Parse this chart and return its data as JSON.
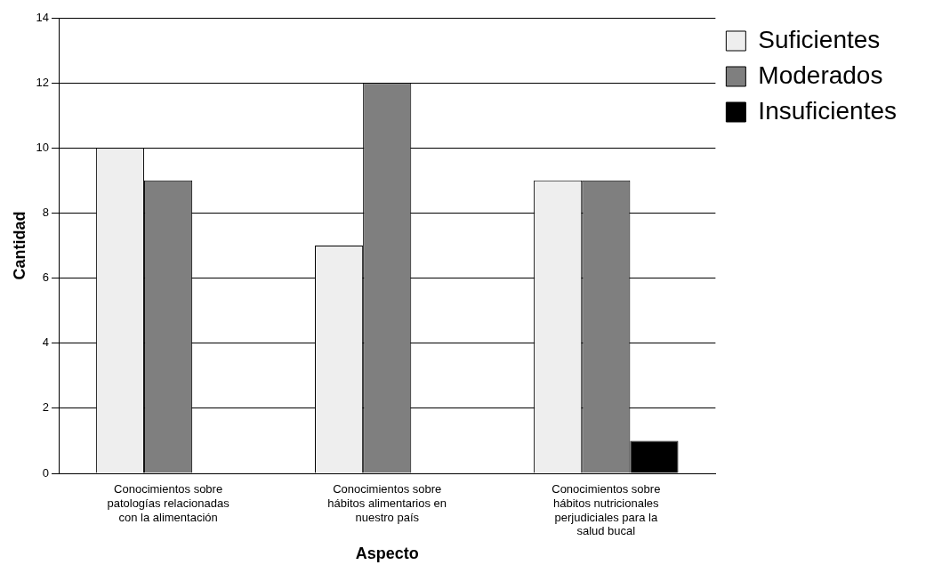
{
  "chart_data": {
    "type": "bar",
    "xlabel": "Aspecto",
    "ylabel": "Cantidad",
    "categories": [
      "Conocimientos sobre patologías relacionadas con la alimentación",
      "Conocimientos sobre hábitos alimentarios en nuestro país",
      "Conocimientos sobre hábitos nutricionales perjudiciales para la salud bucal"
    ],
    "series": [
      {
        "name": "Suficientes",
        "color": "#eeeeee",
        "values": [
          10,
          7,
          9
        ]
      },
      {
        "name": "Moderados",
        "color": "#7f7f7f",
        "values": [
          9,
          12,
          9
        ]
      },
      {
        "name": "Insuficientes",
        "color": "#000000",
        "values": [
          0,
          0,
          1
        ]
      }
    ],
    "ylim": [
      0,
      14
    ],
    "yticks": [
      0,
      2,
      4,
      6,
      8,
      10,
      12,
      14
    ],
    "grid": "y",
    "legend": "right"
  }
}
